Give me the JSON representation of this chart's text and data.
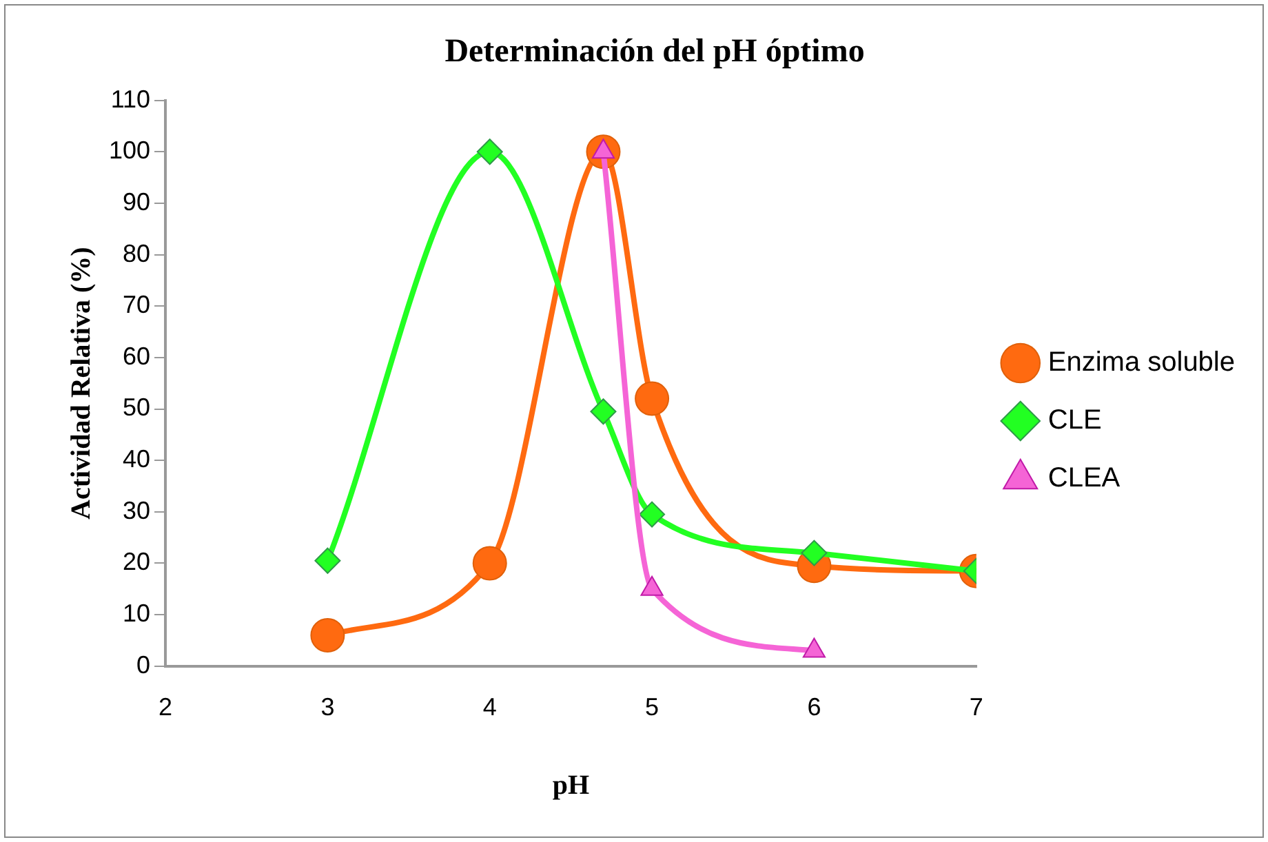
{
  "chart_data": {
    "type": "line",
    "title": "Determinación del pH óptimo",
    "xlabel": "pH",
    "ylabel": "Actividad Relativa (%)",
    "xlim": [
      2,
      7
    ],
    "xticks": [
      2,
      3,
      4,
      5,
      6,
      7
    ],
    "ylim": [
      0,
      110
    ],
    "yticks": [
      0,
      10,
      20,
      30,
      40,
      50,
      60,
      70,
      80,
      90,
      100,
      110
    ],
    "grid": false,
    "legend": "right",
    "series": [
      {
        "name": "Enzima soluble",
        "color": "#ff6a10",
        "marker": "circle",
        "x": [
          3,
          4,
          4.7,
          5,
          6,
          7
        ],
        "values": [
          6,
          20,
          100,
          52,
          19.5,
          18.5
        ]
      },
      {
        "name": "CLE",
        "color": "#22ff22",
        "marker": "diamond",
        "x": [
          3,
          4,
          4.7,
          5,
          6,
          7
        ],
        "values": [
          20.5,
          100,
          49.5,
          29.5,
          22,
          18.5
        ]
      },
      {
        "name": "CLEA",
        "color": "#f564d6",
        "marker": "triangle",
        "x": [
          4.7,
          5,
          6
        ],
        "values": [
          100,
          15,
          3
        ]
      }
    ]
  }
}
